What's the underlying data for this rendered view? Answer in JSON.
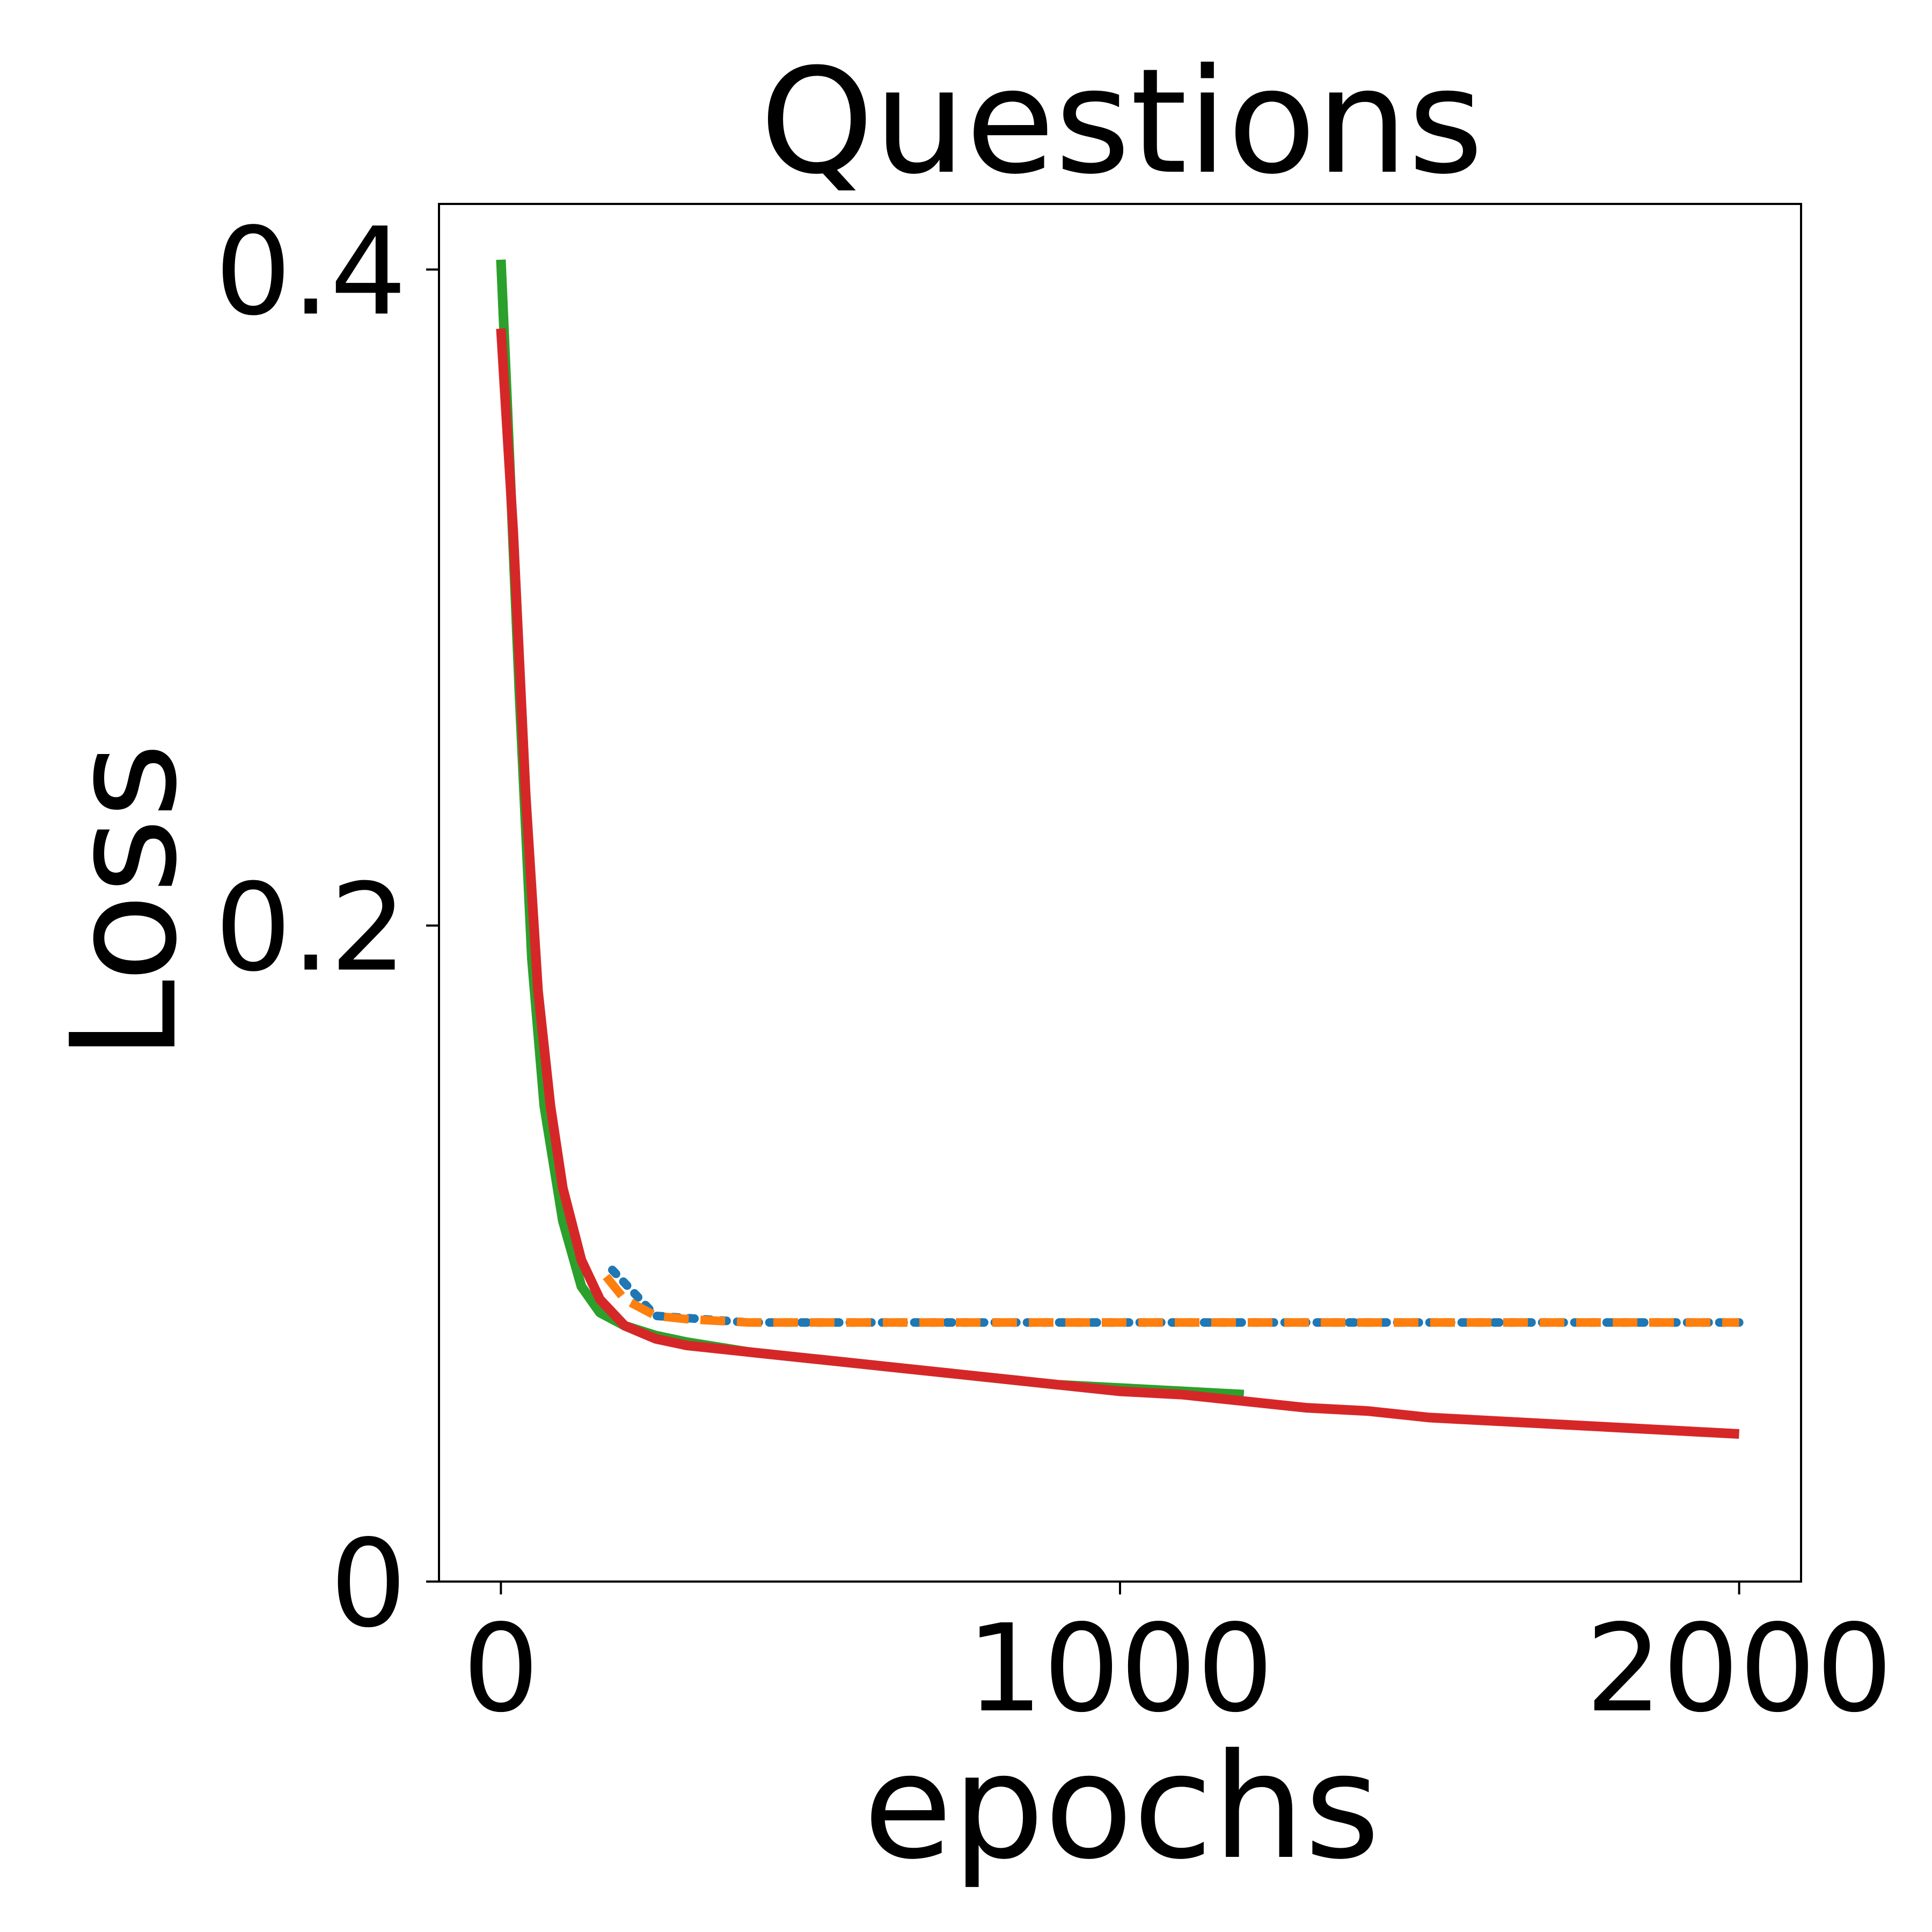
{
  "chart_data": {
    "type": "line",
    "title": "Questions",
    "xlabel": "epochs",
    "ylabel": "Loss",
    "xlim": [
      -100,
      2100
    ],
    "ylim": [
      -0.0,
      0.42
    ],
    "xticks": [
      0,
      1000,
      2000
    ],
    "xtick_labels": [
      "0",
      "1000",
      "2000"
    ],
    "yticks": [
      0,
      0.2,
      0.4
    ],
    "ytick_labels": [
      "0",
      "0.2",
      "0.4"
    ],
    "grid": false,
    "legend": "none",
    "series": [
      {
        "color": "#1f77b4",
        "style": "dotted",
        "x": [
          180,
          250,
          400,
          600,
          800,
          1000,
          1200,
          1400,
          1600,
          1800,
          2000
        ],
        "y": [
          0.095,
          0.081,
          0.079,
          0.079,
          0.079,
          0.079,
          0.079,
          0.079,
          0.079,
          0.079,
          0.079
        ]
      },
      {
        "color": "#ff7f0e",
        "style": "dashed",
        "x": [
          170,
          200,
          250,
          300,
          400,
          600,
          800,
          1000,
          1200,
          1400,
          1600,
          1800,
          2000
        ],
        "y": [
          0.093,
          0.086,
          0.081,
          0.08,
          0.079,
          0.079,
          0.079,
          0.079,
          0.079,
          0.079,
          0.079,
          0.079,
          0.079
        ]
      },
      {
        "color": "#2ca02c",
        "style": "solid",
        "x": [
          0,
          10,
          30,
          50,
          70,
          100,
          130,
          160,
          200,
          250,
          300,
          400,
          500,
          600,
          700,
          800,
          900,
          1000,
          1100,
          1200
        ],
        "y": [
          0.403,
          0.36,
          0.27,
          0.19,
          0.145,
          0.11,
          0.09,
          0.082,
          0.078,
          0.075,
          0.073,
          0.07,
          0.068,
          0.066,
          0.064,
          0.062,
          0.06,
          0.059,
          0.058,
          0.057
        ]
      },
      {
        "color": "#d62728",
        "style": "solid",
        "x": [
          0,
          20,
          40,
          60,
          80,
          100,
          130,
          160,
          200,
          250,
          300,
          400,
          500,
          600,
          700,
          800,
          900,
          1000,
          1100,
          1200,
          1300,
          1400,
          1500,
          1600,
          1700,
          1800,
          1900,
          2000
        ],
        "y": [
          0.382,
          0.32,
          0.24,
          0.18,
          0.145,
          0.12,
          0.098,
          0.086,
          0.078,
          0.074,
          0.072,
          0.07,
          0.068,
          0.066,
          0.064,
          0.062,
          0.06,
          0.058,
          0.057,
          0.055,
          0.053,
          0.052,
          0.05,
          0.049,
          0.048,
          0.047,
          0.046,
          0.045
        ]
      }
    ]
  }
}
